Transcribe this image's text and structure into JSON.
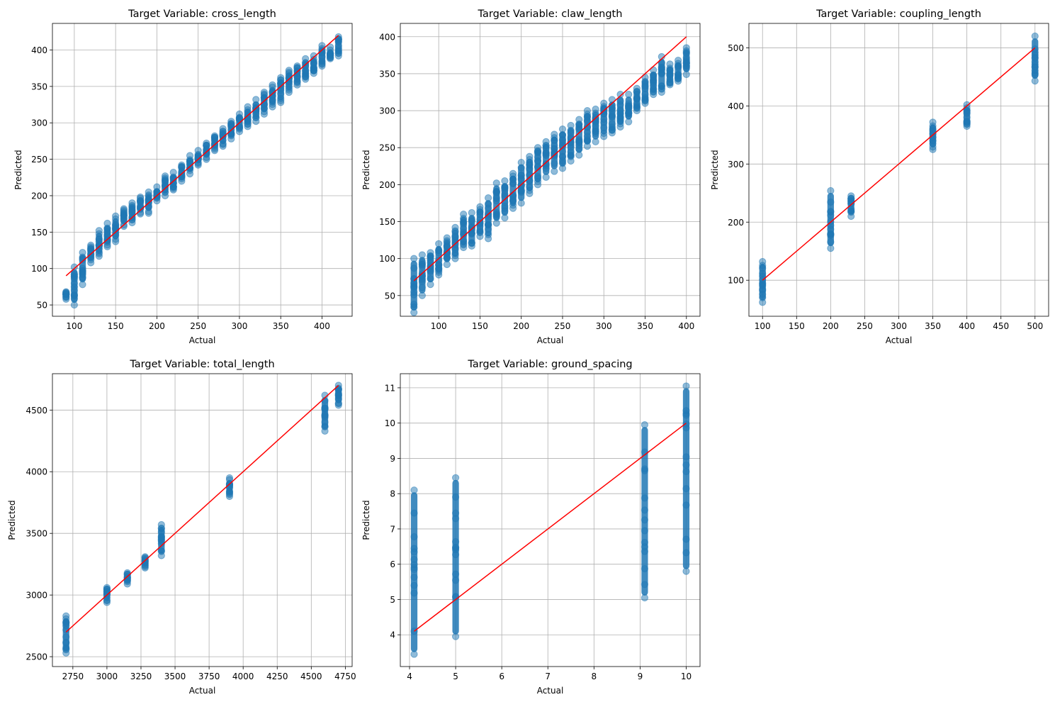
{
  "chart_data": [
    {
      "type": "scatter",
      "title": "Target Variable: cross_length",
      "xlabel": "Actual",
      "ylabel": "Predicted",
      "xlim": [
        73.5,
        436.5
      ],
      "ylim": [
        34.5,
        436.5
      ],
      "xticks": [
        100,
        150,
        200,
        250,
        300,
        350,
        400
      ],
      "yticks": [
        50,
        100,
        150,
        200,
        250,
        300,
        350,
        400
      ],
      "grid": true,
      "point_color": "#1f77b4",
      "line_color": "#ff0000",
      "identity_line": [
        [
          90,
          90
        ],
        [
          420,
          420
        ]
      ],
      "clusters": [
        {
          "x": 90,
          "y_min": 58,
          "y_max": 68
        },
        {
          "x": 100,
          "y_min": 50,
          "y_max": 102
        },
        {
          "x": 110,
          "y_min": 78,
          "y_max": 122
        },
        {
          "x": 120,
          "y_min": 108,
          "y_max": 132
        },
        {
          "x": 130,
          "y_min": 117,
          "y_max": 152
        },
        {
          "x": 140,
          "y_min": 130,
          "y_max": 162
        },
        {
          "x": 150,
          "y_min": 137,
          "y_max": 172
        },
        {
          "x": 160,
          "y_min": 158,
          "y_max": 182
        },
        {
          "x": 170,
          "y_min": 163,
          "y_max": 190
        },
        {
          "x": 180,
          "y_min": 175,
          "y_max": 198
        },
        {
          "x": 190,
          "y_min": 176,
          "y_max": 205
        },
        {
          "x": 200,
          "y_min": 193,
          "y_max": 212
        },
        {
          "x": 210,
          "y_min": 200,
          "y_max": 227
        },
        {
          "x": 220,
          "y_min": 208,
          "y_max": 232
        },
        {
          "x": 230,
          "y_min": 220,
          "y_max": 242
        },
        {
          "x": 240,
          "y_min": 230,
          "y_max": 255
        },
        {
          "x": 250,
          "y_min": 242,
          "y_max": 262
        },
        {
          "x": 260,
          "y_min": 250,
          "y_max": 272
        },
        {
          "x": 270,
          "y_min": 262,
          "y_max": 282
        },
        {
          "x": 280,
          "y_min": 268,
          "y_max": 292
        },
        {
          "x": 290,
          "y_min": 278,
          "y_max": 302
        },
        {
          "x": 300,
          "y_min": 288,
          "y_max": 312
        },
        {
          "x": 310,
          "y_min": 295,
          "y_max": 322
        },
        {
          "x": 320,
          "y_min": 302,
          "y_max": 332
        },
        {
          "x": 330,
          "y_min": 312,
          "y_max": 342
        },
        {
          "x": 340,
          "y_min": 322,
          "y_max": 352
        },
        {
          "x": 350,
          "y_min": 328,
          "y_max": 362
        },
        {
          "x": 360,
          "y_min": 342,
          "y_max": 372
        },
        {
          "x": 370,
          "y_min": 352,
          "y_max": 378
        },
        {
          "x": 380,
          "y_min": 360,
          "y_max": 388
        },
        {
          "x": 390,
          "y_min": 368,
          "y_max": 392
        },
        {
          "x": 400,
          "y_min": 378,
          "y_max": 406
        },
        {
          "x": 410,
          "y_min": 388,
          "y_max": 404
        },
        {
          "x": 420,
          "y_min": 392,
          "y_max": 418
        }
      ]
    },
    {
      "type": "scatter",
      "title": "Target Variable: claw_length",
      "xlabel": "Actual",
      "ylabel": "Predicted",
      "xlim": [
        53.5,
        416.5
      ],
      "ylim": [
        22,
        418
      ],
      "xticks": [
        100,
        150,
        200,
        250,
        300,
        350,
        400
      ],
      "yticks": [
        50,
        100,
        150,
        200,
        250,
        300,
        350,
        400
      ],
      "grid": true,
      "point_color": "#1f77b4",
      "line_color": "#ff0000",
      "identity_line": [
        [
          70,
          70
        ],
        [
          400,
          400
        ]
      ],
      "clusters": [
        {
          "x": 70,
          "y_min": 27,
          "y_max": 100
        },
        {
          "x": 80,
          "y_min": 50,
          "y_max": 105
        },
        {
          "x": 90,
          "y_min": 65,
          "y_max": 108
        },
        {
          "x": 100,
          "y_min": 78,
          "y_max": 120
        },
        {
          "x": 110,
          "y_min": 92,
          "y_max": 128
        },
        {
          "x": 120,
          "y_min": 100,
          "y_max": 142
        },
        {
          "x": 130,
          "y_min": 115,
          "y_max": 160
        },
        {
          "x": 140,
          "y_min": 117,
          "y_max": 162
        },
        {
          "x": 150,
          "y_min": 130,
          "y_max": 170
        },
        {
          "x": 160,
          "y_min": 127,
          "y_max": 182
        },
        {
          "x": 170,
          "y_min": 148,
          "y_max": 202
        },
        {
          "x": 180,
          "y_min": 155,
          "y_max": 205
        },
        {
          "x": 190,
          "y_min": 168,
          "y_max": 215
        },
        {
          "x": 200,
          "y_min": 175,
          "y_max": 230
        },
        {
          "x": 210,
          "y_min": 188,
          "y_max": 238
        },
        {
          "x": 220,
          "y_min": 200,
          "y_max": 250
        },
        {
          "x": 230,
          "y_min": 210,
          "y_max": 258
        },
        {
          "x": 240,
          "y_min": 218,
          "y_max": 268
        },
        {
          "x": 250,
          "y_min": 222,
          "y_max": 275
        },
        {
          "x": 260,
          "y_min": 232,
          "y_max": 280
        },
        {
          "x": 270,
          "y_min": 240,
          "y_max": 288
        },
        {
          "x": 280,
          "y_min": 252,
          "y_max": 300
        },
        {
          "x": 290,
          "y_min": 258,
          "y_max": 302
        },
        {
          "x": 300,
          "y_min": 265,
          "y_max": 310
        },
        {
          "x": 310,
          "y_min": 270,
          "y_max": 315
        },
        {
          "x": 320,
          "y_min": 278,
          "y_max": 322
        },
        {
          "x": 330,
          "y_min": 285,
          "y_max": 322
        },
        {
          "x": 340,
          "y_min": 300,
          "y_max": 330
        },
        {
          "x": 350,
          "y_min": 310,
          "y_max": 345
        },
        {
          "x": 360,
          "y_min": 322,
          "y_max": 355
        },
        {
          "x": 370,
          "y_min": 325,
          "y_max": 373
        },
        {
          "x": 380,
          "y_min": 335,
          "y_max": 363
        },
        {
          "x": 390,
          "y_min": 340,
          "y_max": 368
        },
        {
          "x": 400,
          "y_min": 349,
          "y_max": 385
        }
      ]
    },
    {
      "type": "scatter",
      "title": "Target Variable: coupling_length",
      "xlabel": "Actual",
      "ylabel": "Predicted",
      "xlim": [
        80,
        520
      ],
      "ylim": [
        38,
        542
      ],
      "xticks": [
        100,
        150,
        200,
        250,
        300,
        350,
        400,
        450,
        500
      ],
      "yticks": [
        100,
        200,
        300,
        400,
        500
      ],
      "grid": true,
      "point_color": "#1f77b4",
      "line_color": "#ff0000",
      "identity_line": [
        [
          100,
          100
        ],
        [
          500,
          500
        ]
      ],
      "clusters": [
        {
          "x": 100,
          "y_min": 62,
          "y_max": 132
        },
        {
          "x": 200,
          "y_min": 155,
          "y_max": 254
        },
        {
          "x": 230,
          "y_min": 210,
          "y_max": 245
        },
        {
          "x": 350,
          "y_min": 325,
          "y_max": 372
        },
        {
          "x": 400,
          "y_min": 365,
          "y_max": 402
        },
        {
          "x": 500,
          "y_min": 443,
          "y_max": 520
        }
      ]
    },
    {
      "type": "scatter",
      "title": "Target Variable: total_length",
      "xlabel": "Actual",
      "ylabel": "Predicted",
      "xlim": [
        2600,
        4800
      ],
      "ylim": [
        2420,
        4795
      ],
      "xticks": [
        2750,
        3000,
        3250,
        3500,
        3750,
        4000,
        4250,
        4500,
        4750
      ],
      "yticks": [
        2500,
        3000,
        3500,
        4000,
        4500
      ],
      "grid": true,
      "point_color": "#1f77b4",
      "line_color": "#ff0000",
      "identity_line": [
        [
          2700,
          2700
        ],
        [
          4700,
          4700
        ]
      ],
      "clusters": [
        {
          "x": 2700,
          "y_min": 2530,
          "y_max": 2830
        },
        {
          "x": 3000,
          "y_min": 2940,
          "y_max": 3060
        },
        {
          "x": 3150,
          "y_min": 3090,
          "y_max": 3180
        },
        {
          "x": 3280,
          "y_min": 3220,
          "y_max": 3310
        },
        {
          "x": 3400,
          "y_min": 3320,
          "y_max": 3570
        },
        {
          "x": 3900,
          "y_min": 3800,
          "y_max": 3950
        },
        {
          "x": 4600,
          "y_min": 4330,
          "y_max": 4620
        },
        {
          "x": 4700,
          "y_min": 4540,
          "y_max": 4700
        }
      ]
    },
    {
      "type": "scatter",
      "title": "Target Variable: ground_spacing",
      "xlabel": "Actual",
      "ylabel": "Predicted",
      "xlim": [
        3.8,
        10.3
      ],
      "ylim": [
        3.1,
        11.4
      ],
      "xticks": [
        4,
        5,
        6,
        7,
        8,
        9,
        10
      ],
      "yticks": [
        4,
        5,
        6,
        7,
        8,
        9,
        10,
        11
      ],
      "grid": true,
      "point_color": "#1f77b4",
      "line_color": "#ff0000",
      "identity_line": [
        [
          4.1,
          4.1
        ],
        [
          10,
          10
        ]
      ],
      "clusters": [
        {
          "x": 4.1,
          "y_min": 3.45,
          "y_max": 8.1
        },
        {
          "x": 5,
          "y_min": 3.95,
          "y_max": 8.45
        },
        {
          "x": 9.1,
          "y_min": 5.05,
          "y_max": 9.95
        },
        {
          "x": 10,
          "y_min": 5.8,
          "y_max": 11.05
        }
      ]
    }
  ]
}
